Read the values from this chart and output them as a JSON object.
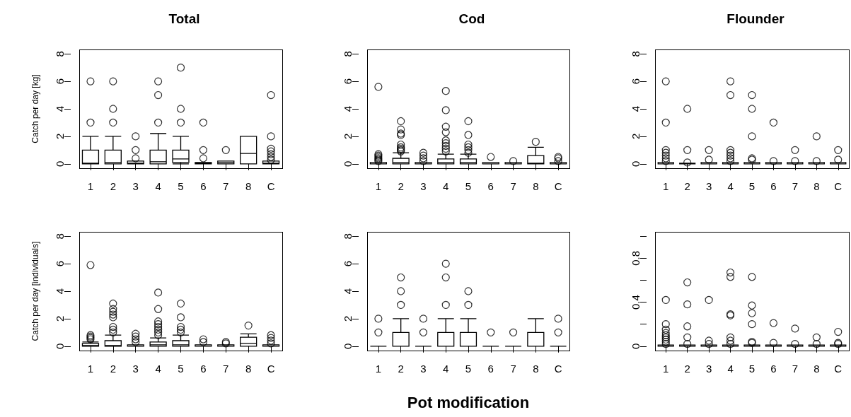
{
  "chart_data": [
    {
      "type": "box",
      "grid": false,
      "title": "Total",
      "ylabel": "Catch per day [kg]",
      "categories": [
        "1",
        "2",
        "3",
        "4",
        "5",
        "6",
        "7",
        "8",
        "C"
      ],
      "ylim": [
        -0.32,
        8.32
      ],
      "yticks": [
        0,
        2,
        4,
        6,
        8
      ],
      "boxes": [
        {
          "low": 0,
          "q1": 0,
          "median": 0.05,
          "q3": 1,
          "high": 2,
          "outliers": [
            3,
            6
          ]
        },
        {
          "low": 0,
          "q1": 0,
          "median": 0.1,
          "q3": 1,
          "high": 2,
          "outliers": [
            3,
            4,
            6
          ]
        },
        {
          "low": 0,
          "q1": 0,
          "median": 0.05,
          "q3": 0.2,
          "high": 0.2,
          "outliers": [
            0.4,
            1,
            2
          ]
        },
        {
          "low": 0,
          "q1": 0,
          "median": 0.15,
          "q3": 1,
          "high": 2.2,
          "outliers": [
            3,
            5,
            6
          ]
        },
        {
          "low": 0,
          "q1": 0.1,
          "median": 0.35,
          "q3": 1,
          "high": 2,
          "outliers": [
            3,
            4,
            7
          ]
        },
        {
          "low": 0,
          "q1": 0,
          "median": 0.05,
          "q3": 0.1,
          "high": 0.1,
          "outliers": [
            0.4,
            1,
            3
          ]
        },
        {
          "low": 0,
          "q1": 0,
          "median": 0.1,
          "q3": 0.2,
          "high": 0.2,
          "outliers": [
            1
          ]
        },
        {
          "low": 0,
          "q1": 0,
          "median": 0.75,
          "q3": 2,
          "high": 2
        },
        {
          "low": 0,
          "q1": 0,
          "median": 0.05,
          "q3": 0.2,
          "high": 0.2,
          "outliers": [
            0.3,
            0.5,
            0.7,
            0.9,
            1.1,
            2,
            5
          ]
        }
      ]
    },
    {
      "type": "box",
      "grid": false,
      "title": "Cod",
      "categories": [
        "1",
        "2",
        "3",
        "4",
        "5",
        "6",
        "7",
        "8",
        "C"
      ],
      "ylim": [
        -0.32,
        8.32
      ],
      "yticks": [
        0,
        2,
        4,
        6,
        8
      ],
      "boxes": [
        {
          "low": 0,
          "q1": 0,
          "median": 0,
          "q3": 0.1,
          "high": 0.1,
          "outliers": [
            0.2,
            0.3,
            0.4,
            0.5,
            0.6,
            0.7,
            5.6
          ]
        },
        {
          "low": 0,
          "q1": 0,
          "median": 0.1,
          "q3": 0.4,
          "high": 0.8,
          "outliers": [
            0.9,
            1,
            1.1,
            1.2,
            1.4,
            2.1,
            2.2,
            2.5,
            3.1
          ]
        },
        {
          "low": 0,
          "q1": 0,
          "median": 0,
          "q3": 0.1,
          "high": 0.1,
          "outliers": [
            0.2,
            0.4,
            0.6,
            0.8
          ]
        },
        {
          "low": 0,
          "q1": 0,
          "median": 0.1,
          "q3": 0.35,
          "high": 0.7,
          "outliers": [
            0.9,
            1.1,
            1.3,
            1.5,
            1.7,
            2.3,
            2.7,
            3.9,
            5.3
          ]
        },
        {
          "low": 0,
          "q1": 0,
          "median": 0.1,
          "q3": 0.35,
          "high": 0.7,
          "outliers": [
            0.8,
            1,
            1.2,
            1.4,
            2.1,
            3.1
          ]
        },
        {
          "low": 0,
          "q1": 0,
          "median": 0,
          "q3": 0.1,
          "high": 0.1,
          "outliers": [
            0.5
          ]
        },
        {
          "low": 0,
          "q1": 0,
          "median": 0,
          "q3": 0.1,
          "high": 0.1,
          "outliers": [
            0.2
          ]
        },
        {
          "low": 0,
          "q1": 0,
          "median": 0.05,
          "q3": 0.6,
          "high": 1.2,
          "outliers": [
            1.6
          ]
        },
        {
          "low": 0,
          "q1": 0,
          "median": 0,
          "q3": 0.1,
          "high": 0.1,
          "outliers": [
            0.2,
            0.4,
            0.5
          ]
        }
      ]
    },
    {
      "type": "box",
      "grid": false,
      "title": "Flounder",
      "categories": [
        "1",
        "2",
        "3",
        "4",
        "5",
        "6",
        "7",
        "8",
        "C"
      ],
      "ylim": [
        -0.32,
        8.32
      ],
      "yticks": [
        0,
        2,
        4,
        6,
        8
      ],
      "boxes": [
        {
          "low": 0,
          "q1": 0,
          "median": 0,
          "q3": 0.1,
          "high": 0.1,
          "outliers": [
            0.2,
            0.4,
            0.6,
            0.8,
            1,
            3,
            6
          ]
        },
        {
          "low": 0,
          "q1": 0,
          "median": 0,
          "q3": 0.05,
          "high": 0.05,
          "outliers": [
            0.1,
            1,
            4
          ]
        },
        {
          "low": 0,
          "q1": 0,
          "median": 0,
          "q3": 0.1,
          "high": 0.1,
          "outliers": [
            0.3,
            1
          ]
        },
        {
          "low": 0,
          "q1": 0,
          "median": 0,
          "q3": 0.1,
          "high": 0.1,
          "outliers": [
            0.2,
            0.4,
            0.6,
            0.8,
            1,
            5,
            6
          ]
        },
        {
          "low": 0,
          "q1": 0,
          "median": 0,
          "q3": 0.1,
          "high": 0.1,
          "outliers": [
            0.3,
            0.4,
            2,
            4,
            5
          ]
        },
        {
          "low": 0,
          "q1": 0,
          "median": 0,
          "q3": 0.1,
          "high": 0.1,
          "outliers": [
            0.2,
            3
          ]
        },
        {
          "low": 0,
          "q1": 0,
          "median": 0,
          "q3": 0.1,
          "high": 0.1,
          "outliers": [
            0.2,
            1
          ]
        },
        {
          "low": 0,
          "q1": 0,
          "median": 0,
          "q3": 0.1,
          "high": 0.1,
          "outliers": [
            0.2,
            2
          ]
        },
        {
          "low": 0,
          "q1": 0,
          "median": 0,
          "q3": 0.1,
          "high": 0.1,
          "outliers": [
            0.3,
            1
          ]
        }
      ]
    },
    {
      "type": "box",
      "grid": false,
      "ylabel": "Catch per day [individuals]",
      "categories": [
        "1",
        "2",
        "3",
        "4",
        "5",
        "6",
        "7",
        "8",
        "C"
      ],
      "ylim": [
        -0.32,
        8.32
      ],
      "yticks": [
        0,
        2,
        4,
        6,
        8
      ],
      "boxes": [
        {
          "low": 0,
          "q1": 0,
          "median": 0.05,
          "q3": 0.2,
          "high": 0.3,
          "outliers": [
            0.5,
            0.6,
            0.7,
            0.8,
            5.9
          ]
        },
        {
          "low": 0,
          "q1": 0,
          "median": 0.05,
          "q3": 0.4,
          "high": 0.8,
          "outliers": [
            1,
            1.2,
            1.4,
            2.1,
            2.3,
            2.5,
            2.7,
            3.1
          ]
        },
        {
          "low": 0,
          "q1": 0,
          "median": 0,
          "q3": 0.1,
          "high": 0.1,
          "outliers": [
            0.3,
            0.5,
            0.7,
            0.9
          ]
        },
        {
          "low": 0,
          "q1": 0,
          "median": 0.1,
          "q3": 0.3,
          "high": 0.6,
          "outliers": [
            0.8,
            1,
            1.2,
            1.4,
            1.6,
            1.8,
            2.7,
            3.9
          ]
        },
        {
          "low": 0,
          "q1": 0,
          "median": 0.1,
          "q3": 0.4,
          "high": 0.8,
          "outliers": [
            1,
            1.2,
            1.4,
            2.1,
            3.1
          ]
        },
        {
          "low": 0,
          "q1": 0,
          "median": 0,
          "q3": 0.1,
          "high": 0.1,
          "outliers": [
            0.3,
            0.5
          ]
        },
        {
          "low": 0,
          "q1": 0,
          "median": 0,
          "q3": 0.1,
          "high": 0.1,
          "outliers": [
            0.2,
            0.3
          ]
        },
        {
          "low": 0,
          "q1": 0,
          "median": 0.2,
          "q3": 0.65,
          "high": 0.9,
          "outliers": [
            1.5
          ]
        },
        {
          "low": 0,
          "q1": 0,
          "median": 0,
          "q3": 0.1,
          "high": 0.1,
          "outliers": [
            0.2,
            0.4,
            0.6,
            0.8
          ]
        }
      ]
    },
    {
      "type": "box",
      "grid": false,
      "xlabel": "Pot modification",
      "categories": [
        "1",
        "2",
        "3",
        "4",
        "5",
        "6",
        "7",
        "8",
        "C"
      ],
      "ylim": [
        -0.32,
        8.32
      ],
      "yticks": [
        0,
        2,
        4,
        6,
        8
      ],
      "boxes": [
        {
          "low": 0,
          "q1": 0,
          "median": 0,
          "q3": 0,
          "high": 0,
          "outliers": [
            1,
            2
          ]
        },
        {
          "low": 0,
          "q1": 0,
          "median": 0,
          "q3": 1,
          "high": 2,
          "outliers": [
            3,
            4,
            5
          ]
        },
        {
          "low": 0,
          "q1": 0,
          "median": 0,
          "q3": 0,
          "high": 0,
          "outliers": [
            1,
            2
          ]
        },
        {
          "low": 0,
          "q1": 0,
          "median": 0,
          "q3": 1,
          "high": 2,
          "outliers": [
            3,
            5,
            6
          ]
        },
        {
          "low": 0,
          "q1": 0,
          "median": 0,
          "q3": 1,
          "high": 2,
          "outliers": [
            3,
            4
          ]
        },
        {
          "low": 0,
          "q1": 0,
          "median": 0,
          "q3": 0,
          "high": 0,
          "outliers": [
            1
          ]
        },
        {
          "low": 0,
          "q1": 0,
          "median": 0,
          "q3": 0,
          "high": 0,
          "outliers": [
            1
          ]
        },
        {
          "low": 0,
          "q1": 0,
          "median": 0,
          "q3": 1,
          "high": 2
        },
        {
          "low": 0,
          "q1": 0,
          "median": 0,
          "q3": 0,
          "high": 0,
          "outliers": [
            1,
            2
          ]
        }
      ]
    },
    {
      "type": "box",
      "grid": false,
      "categories": [
        "1",
        "2",
        "3",
        "4",
        "5",
        "6",
        "7",
        "8",
        "C"
      ],
      "ylim": [
        -0.04,
        1.04
      ],
      "yticks": [
        0,
        {
          "value": 0.2,
          "label": null
        },
        {
          "value": 0.4,
          "label": "0.4"
        },
        {
          "value": 0.6,
          "label": null
        },
        {
          "value": 0.8,
          "label": "0.8"
        },
        {
          "value": 1,
          "label": null
        }
      ],
      "boxes": [
        {
          "low": 0,
          "q1": 0,
          "median": 0,
          "q3": 0.01,
          "high": 0.01,
          "outliers": [
            0.02,
            0.04,
            0.06,
            0.08,
            0.1,
            0.12,
            0.15,
            0.2,
            0.42
          ]
        },
        {
          "low": 0,
          "q1": 0,
          "median": 0,
          "q3": 0.01,
          "high": 0.01,
          "outliers": [
            0.02,
            0.08,
            0.18,
            0.38,
            0.58
          ]
        },
        {
          "low": 0,
          "q1": 0,
          "median": 0,
          "q3": 0.01,
          "high": 0.01,
          "outliers": [
            0.02,
            0.05,
            0.42
          ]
        },
        {
          "low": 0,
          "q1": 0,
          "median": 0,
          "q3": 0.01,
          "high": 0.01,
          "outliers": [
            0.02,
            0.05,
            0.08,
            0.28,
            0.29,
            0.63,
            0.67
          ]
        },
        {
          "low": 0,
          "q1": 0,
          "median": 0,
          "q3": 0.01,
          "high": 0.01,
          "outliers": [
            0.03,
            0.04,
            0.2,
            0.3,
            0.37,
            0.63
          ]
        },
        {
          "low": 0,
          "q1": 0,
          "median": 0,
          "q3": 0.01,
          "high": 0.01,
          "outliers": [
            0.03,
            0.21
          ]
        },
        {
          "low": 0,
          "q1": 0,
          "median": 0,
          "q3": 0.01,
          "high": 0.01,
          "outliers": [
            0.02,
            0.16
          ]
        },
        {
          "low": 0,
          "q1": 0,
          "median": 0,
          "q3": 0.01,
          "high": 0.01,
          "outliers": [
            0.02,
            0.08
          ]
        },
        {
          "low": 0,
          "q1": 0,
          "median": 0,
          "q3": 0.01,
          "high": 0.01,
          "outliers": [
            0.02,
            0.03,
            0.13
          ]
        }
      ]
    }
  ]
}
